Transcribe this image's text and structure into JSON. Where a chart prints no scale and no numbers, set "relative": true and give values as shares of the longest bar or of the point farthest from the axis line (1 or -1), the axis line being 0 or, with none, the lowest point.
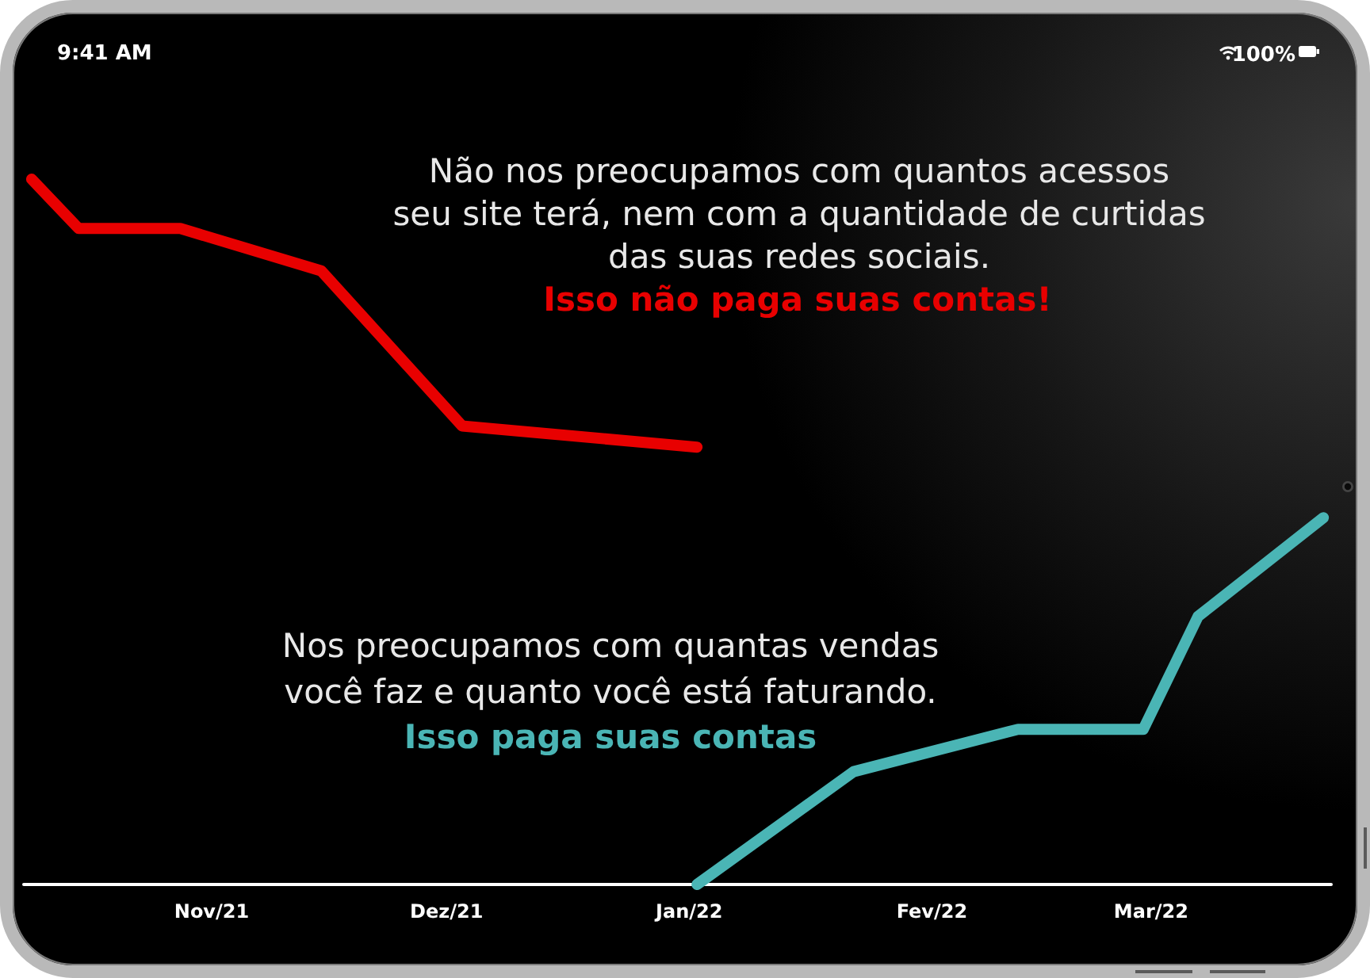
{
  "chart_data": {
    "type": "line",
    "relative": true,
    "xlim": [
      "2021-10-08",
      "2022-03-24"
    ],
    "xticks": [
      {
        "value": "2021-11",
        "label": "Nov/21"
      },
      {
        "value": "2021-12",
        "label": "Dez/21"
      },
      {
        "value": "2022-01",
        "label": "Jan/22"
      },
      {
        "value": "2022-02",
        "label": "Fev/22"
      },
      {
        "value": "2022-03",
        "label": "Mar/22"
      }
    ],
    "series": [
      {
        "color": "#e80000",
        "x": [
          "2021-10-09",
          "2021-10-15",
          "2021-10-28",
          "2021-11-15",
          "2021-12-03",
          "2022-01-02"
        ],
        "values": [
          1,
          0.93,
          0.93,
          0.87,
          0.65,
          0.62
        ]
      },
      {
        "color": "#4ab5b5",
        "x": [
          "2022-01-02",
          "2022-01-22",
          "2022-02-12",
          "2022-02-28",
          "2022-03-07",
          "2022-03-23"
        ],
        "values": [
          0,
          0.16,
          0.22,
          0.22,
          0.38,
          0.52
        ]
      }
    ],
    "annotations": [
      "9:41 AM",
      "100%",
      "Não nos preocupamos com quantos acessos\nseu site terá, nem com a quantidade de curtidas\ndas suas redes sociais.",
      "Isso não paga suas contas!",
      "Nos preocupamos com quantas vendas\nvocê faz e quanto você está faturando.",
      "Isso paga suas contas"
    ]
  }
}
